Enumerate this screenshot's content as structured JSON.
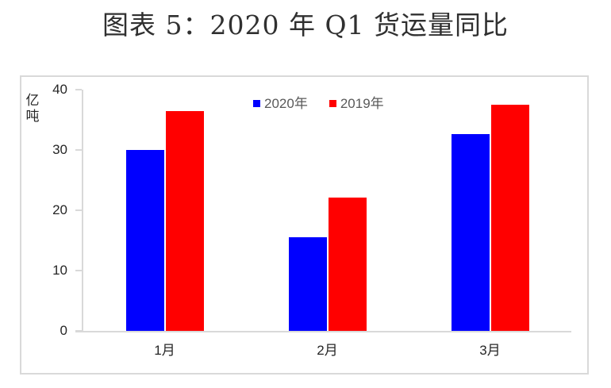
{
  "title": "图表 5：2020 年 Q1 货运量同比",
  "chart_data": {
    "type": "bar",
    "title": "图表 5：2020 年 Q1 货运量同比",
    "categories": [
      "1月",
      "2月",
      "3月"
    ],
    "series": [
      {
        "name": "2020年",
        "color": "#0000ff",
        "values": [
          30.0,
          15.5,
          32.6
        ]
      },
      {
        "name": "2019年",
        "color": "#ff0000",
        "values": [
          36.5,
          22.1,
          37.5
        ]
      }
    ],
    "xlabel": "",
    "ylabel": "亿吨",
    "ylim": [
      0,
      40
    ],
    "yticks": [
      0,
      10,
      20,
      30,
      40
    ],
    "grid": false,
    "legend_position": "top-center"
  },
  "colors": {
    "series_2020": "#0000ff",
    "series_2019": "#ff0000",
    "axis_line": "#d9d9d9",
    "panel_border": "#d9d9d9",
    "tick_text": "#262626",
    "legend_text": "#595959",
    "title_text": "#303030",
    "background": "#ffffff"
  }
}
